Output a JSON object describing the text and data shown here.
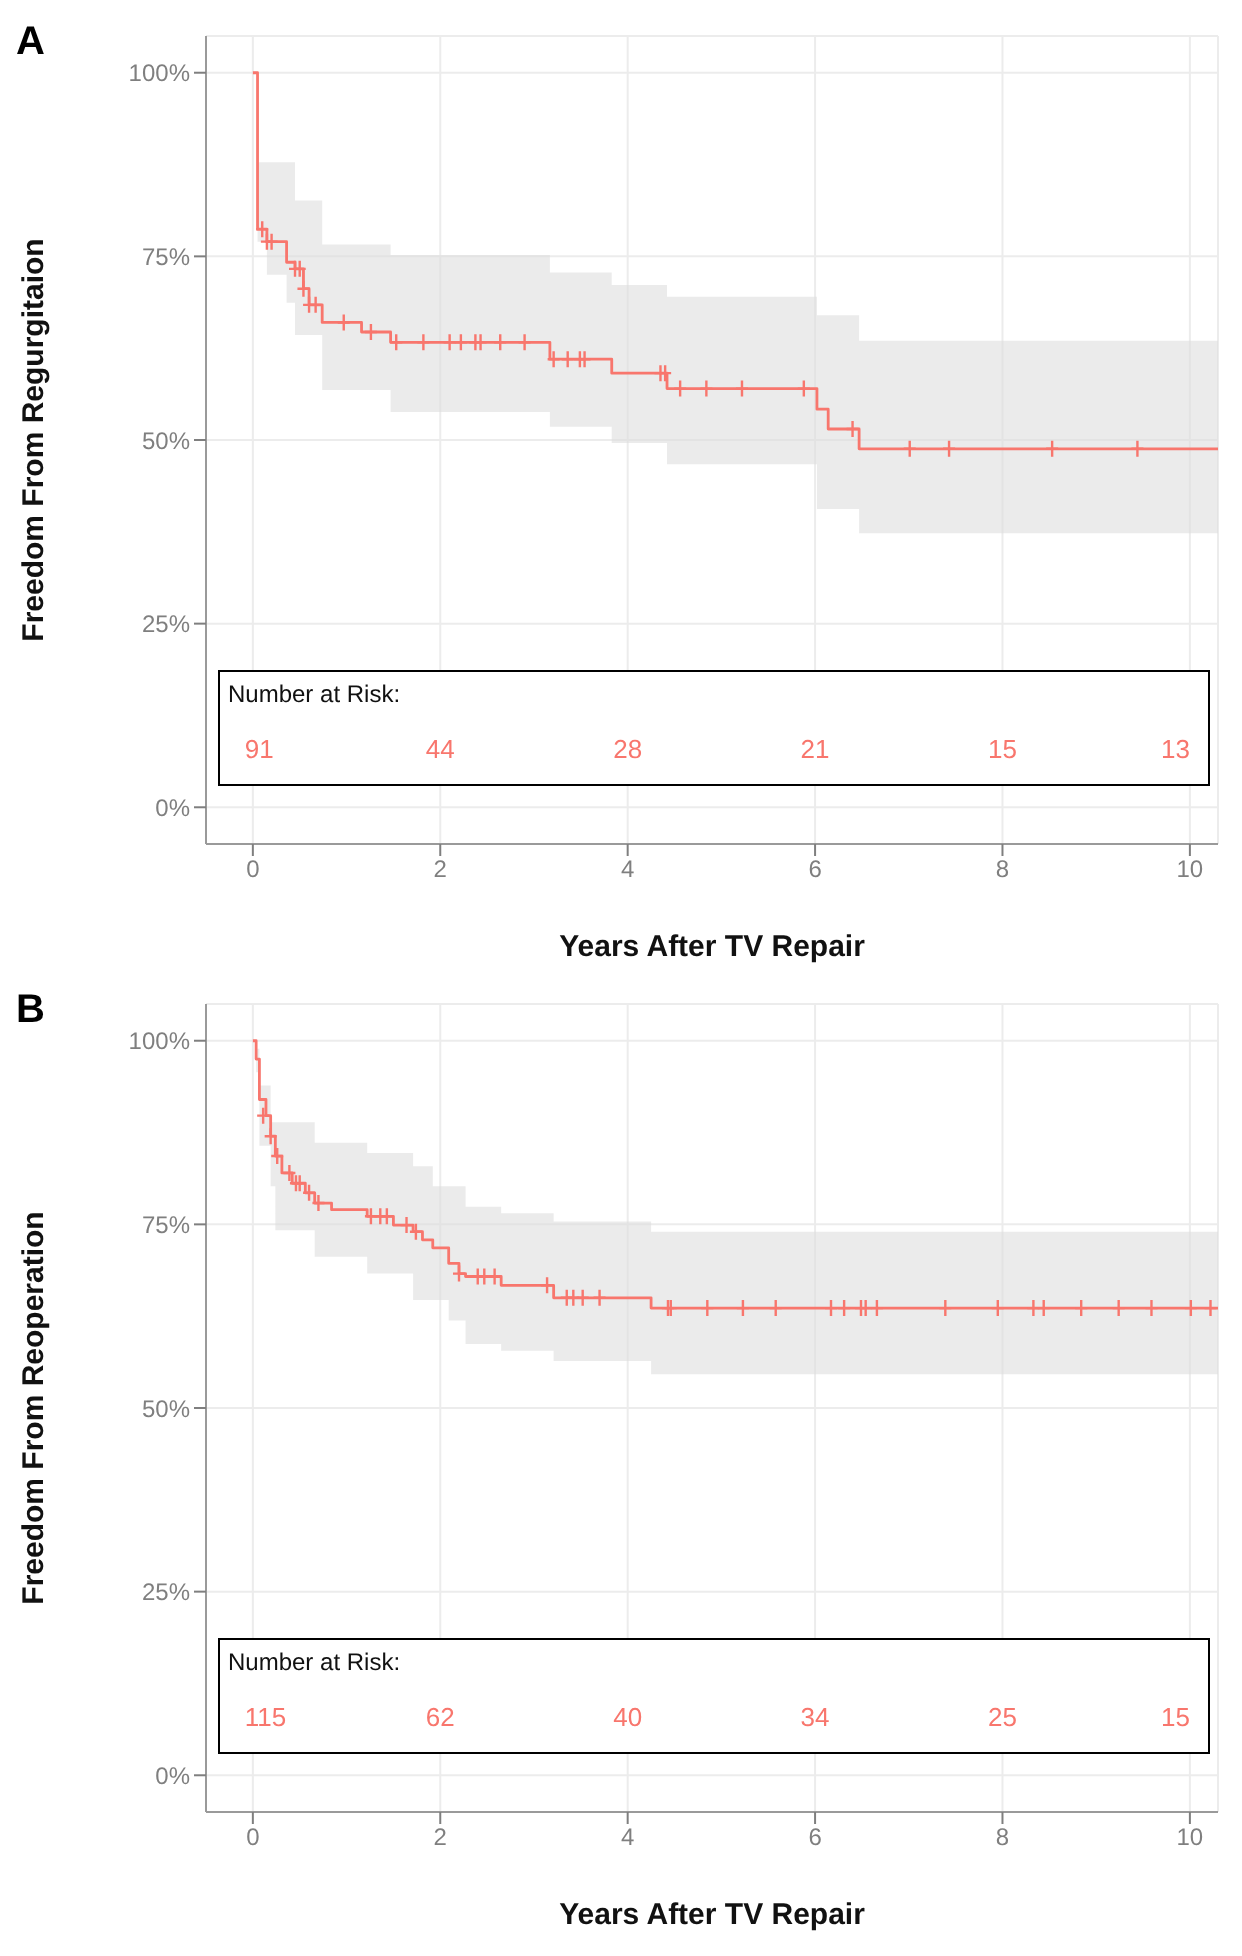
{
  "chart_data": [
    {
      "type": "step",
      "title": "A",
      "xlabel": "Years After TV Repair",
      "ylabel": "Freedom From Regurgitaion",
      "xlim": [
        -0.5,
        10.3
      ],
      "xticks": [
        0,
        2,
        4,
        6,
        8,
        10
      ],
      "ylim": [
        -5,
        105
      ],
      "yticks": [
        {
          "value": 0,
          "label": "0%"
        },
        {
          "value": 25,
          "label": "25%"
        },
        {
          "value": 50,
          "label": "50%"
        },
        {
          "value": 75,
          "label": "75%"
        },
        {
          "value": 100,
          "label": "100%"
        }
      ],
      "grid": true,
      "legend": false,
      "line_style": "solid",
      "annotations": [
        "Number at Risk:",
        "91",
        "44",
        "28",
        "21",
        "15",
        "13"
      ],
      "series": [
        {
          "color": "#f8766d",
          "marker": "none",
          "x": [
            0,
            0.05,
            0.15,
            0.36,
            0.45,
            0.54,
            0.6,
            0.74,
            1.16,
            1.47,
            3.17,
            3.83,
            4.42,
            6.02,
            6.14,
            6.47,
            10.3
          ],
          "values": [
            100,
            78.7,
            77,
            74.2,
            73.3,
            70.6,
            68.4,
            66,
            64.7,
            63.3,
            61,
            59.1,
            57,
            54.2,
            51.5,
            48.8,
            48.8
          ],
          "upper": [
            null,
            87.8,
            87.8,
            87.8,
            82.6,
            82.6,
            82.6,
            76.6,
            76.6,
            75.2,
            72.8,
            71.1,
            69.5,
            67,
            67,
            63.5,
            63.5
          ],
          "lower": [
            null,
            77,
            72.5,
            68.7,
            64.3,
            64.3,
            64.3,
            56.8,
            56.8,
            53.8,
            51.8,
            49.6,
            46.7,
            40.6,
            40.6,
            37.3,
            37.3
          ]
        },
        {
          "type": "scatter",
          "color": "#f8766d",
          "marker": "cross",
          "x": [
            0.1,
            0.15,
            0.2,
            0.45,
            0.5,
            0.54,
            0.6,
            0.67,
            0.97,
            1.26,
            1.53,
            1.82,
            2.1,
            2.22,
            2.375,
            2.43,
            2.64,
            2.9,
            3.21,
            3.36,
            3.49,
            3.54,
            4.35,
            4.4,
            4.56,
            4.84,
            5.22,
            5.88,
            6.4,
            7.01,
            7.43,
            8.53,
            9.44
          ],
          "values": [
            78.7,
            77,
            77,
            73.3,
            73.3,
            70.6,
            68.4,
            68.4,
            66,
            64.7,
            63.3,
            63.3,
            63.3,
            63.3,
            63.3,
            63.3,
            63.3,
            63.3,
            61,
            61,
            61,
            61,
            59.1,
            59.1,
            57,
            57,
            57,
            57,
            51.5,
            48.8,
            48.8,
            48.8,
            48.8
          ]
        }
      ]
    },
    {
      "type": "step",
      "title": "B",
      "xlabel": "Years After TV Repair",
      "ylabel": "Freedom From Reoperation",
      "xlim": [
        -0.5,
        10.3
      ],
      "xticks": [
        0,
        2,
        4,
        6,
        8,
        10
      ],
      "ylim": [
        -5,
        105
      ],
      "yticks": [
        {
          "value": 0,
          "label": "0%"
        },
        {
          "value": 25,
          "label": "25%"
        },
        {
          "value": 50,
          "label": "50%"
        },
        {
          "value": 75,
          "label": "75%"
        },
        {
          "value": 100,
          "label": "100%"
        }
      ],
      "grid": true,
      "legend": false,
      "line_style": "solid",
      "annotations": [
        "Number at Risk:",
        "115",
        "62",
        "40",
        "34",
        "25",
        "15"
      ],
      "series": [
        {
          "color": "#f8766d",
          "marker": "none",
          "x": [
            0,
            0.035,
            0.07,
            0.14,
            0.19,
            0.24,
            0.31,
            0.42,
            0.56,
            0.66,
            0.84,
            1.22,
            1.5,
            1.71,
            1.81,
            1.92,
            2.09,
            2.2,
            2.27,
            2.65,
            3.21,
            4.25,
            10.3
          ],
          "values": [
            100,
            97.5,
            92,
            89.8,
            87,
            84.3,
            82,
            80.6,
            79.3,
            77.9,
            77,
            76.1,
            74.9,
            74,
            72.9,
            71.8,
            69.7,
            68.3,
            67.9,
            66.7,
            65,
            63.6,
            63.6
          ],
          "upper": [
            100,
            98.9,
            93.9,
            93.9,
            88.9,
            88.9,
            88.9,
            88.9,
            88.9,
            86.1,
            86.1,
            84.7,
            84.7,
            82.9,
            82.9,
            80.2,
            80.2,
            80.2,
            77.4,
            76.5,
            75.4,
            74,
            74
          ],
          "lower": [
            100,
            95.7,
            85.7,
            85.7,
            80.2,
            74.2,
            74.2,
            74.2,
            74.2,
            70.6,
            70.6,
            68.3,
            68.3,
            64.7,
            64.7,
            64.7,
            61.9,
            61.9,
            58.7,
            57.8,
            56.4,
            54.6,
            54.6
          ]
        },
        {
          "type": "scatter",
          "color": "#f8766d",
          "marker": "cross",
          "x": [
            0.11,
            0.19,
            0.26,
            0.39,
            0.46,
            0.5,
            0.6,
            0.7,
            1.26,
            1.36,
            1.43,
            1.64,
            1.74,
            2.2,
            2.4,
            2.47,
            2.58,
            3.14,
            3.35,
            3.42,
            3.52,
            3.7,
            4.43,
            4.46,
            4.85,
            5.23,
            5.58,
            6.17,
            6.31,
            6.49,
            6.54,
            6.66,
            7.39,
            7.95,
            8.33,
            8.44,
            8.84,
            9.24,
            9.59,
            10.01,
            10.22
          ],
          "values": [
            89.8,
            87,
            84.3,
            82,
            80.6,
            80.6,
            79.3,
            77.9,
            76.1,
            76.1,
            76.1,
            74.9,
            74,
            68.3,
            67.9,
            67.9,
            67.9,
            66.7,
            65,
            65,
            65,
            65,
            63.6,
            63.6,
            63.6,
            63.6,
            63.6,
            63.6,
            63.6,
            63.6,
            63.6,
            63.6,
            63.6,
            63.6,
            63.6,
            63.6,
            63.6,
            63.6,
            63.6,
            63.6,
            63.6
          ]
        }
      ]
    }
  ]
}
